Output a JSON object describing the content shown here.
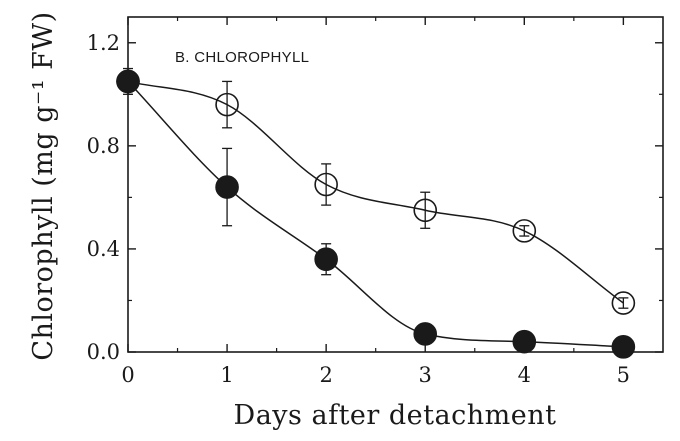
{
  "chart_data": {
    "type": "line",
    "title": "B. CHLOROPHYLL",
    "xlabel": "Days after detachment",
    "ylabel": "Chlorophyll (mg g⁻¹ FW)",
    "xlim": [
      0,
      5.4
    ],
    "ylim": [
      0,
      1.3
    ],
    "x_ticks": [
      0,
      1,
      2,
      3,
      4,
      5
    ],
    "x_tick_labels": [
      "0",
      "1",
      "2",
      "3",
      "4",
      "5"
    ],
    "y_ticks": [
      0.0,
      0.4,
      0.8,
      1.2
    ],
    "y_tick_labels": [
      "0.0",
      "0.4",
      "0.8",
      "1.2"
    ],
    "grid": false,
    "series": [
      {
        "marker": "open-circle",
        "color": "#1a1a1a",
        "x": [
          0,
          1,
          2,
          3,
          4,
          5
        ],
        "y": [
          1.05,
          0.96,
          0.65,
          0.55,
          0.47,
          0.19
        ],
        "error": [
          0.05,
          0.09,
          0.08,
          0.07,
          0.02,
          0.02
        ]
      },
      {
        "marker": "filled-circle",
        "color": "#1a1a1a",
        "x": [
          0,
          1,
          2,
          3,
          4,
          5
        ],
        "y": [
          1.05,
          0.64,
          0.36,
          0.07,
          0.04,
          0.02
        ],
        "error": [
          0.04,
          0.15,
          0.06,
          0.01,
          0.01,
          0.01
        ]
      }
    ]
  }
}
